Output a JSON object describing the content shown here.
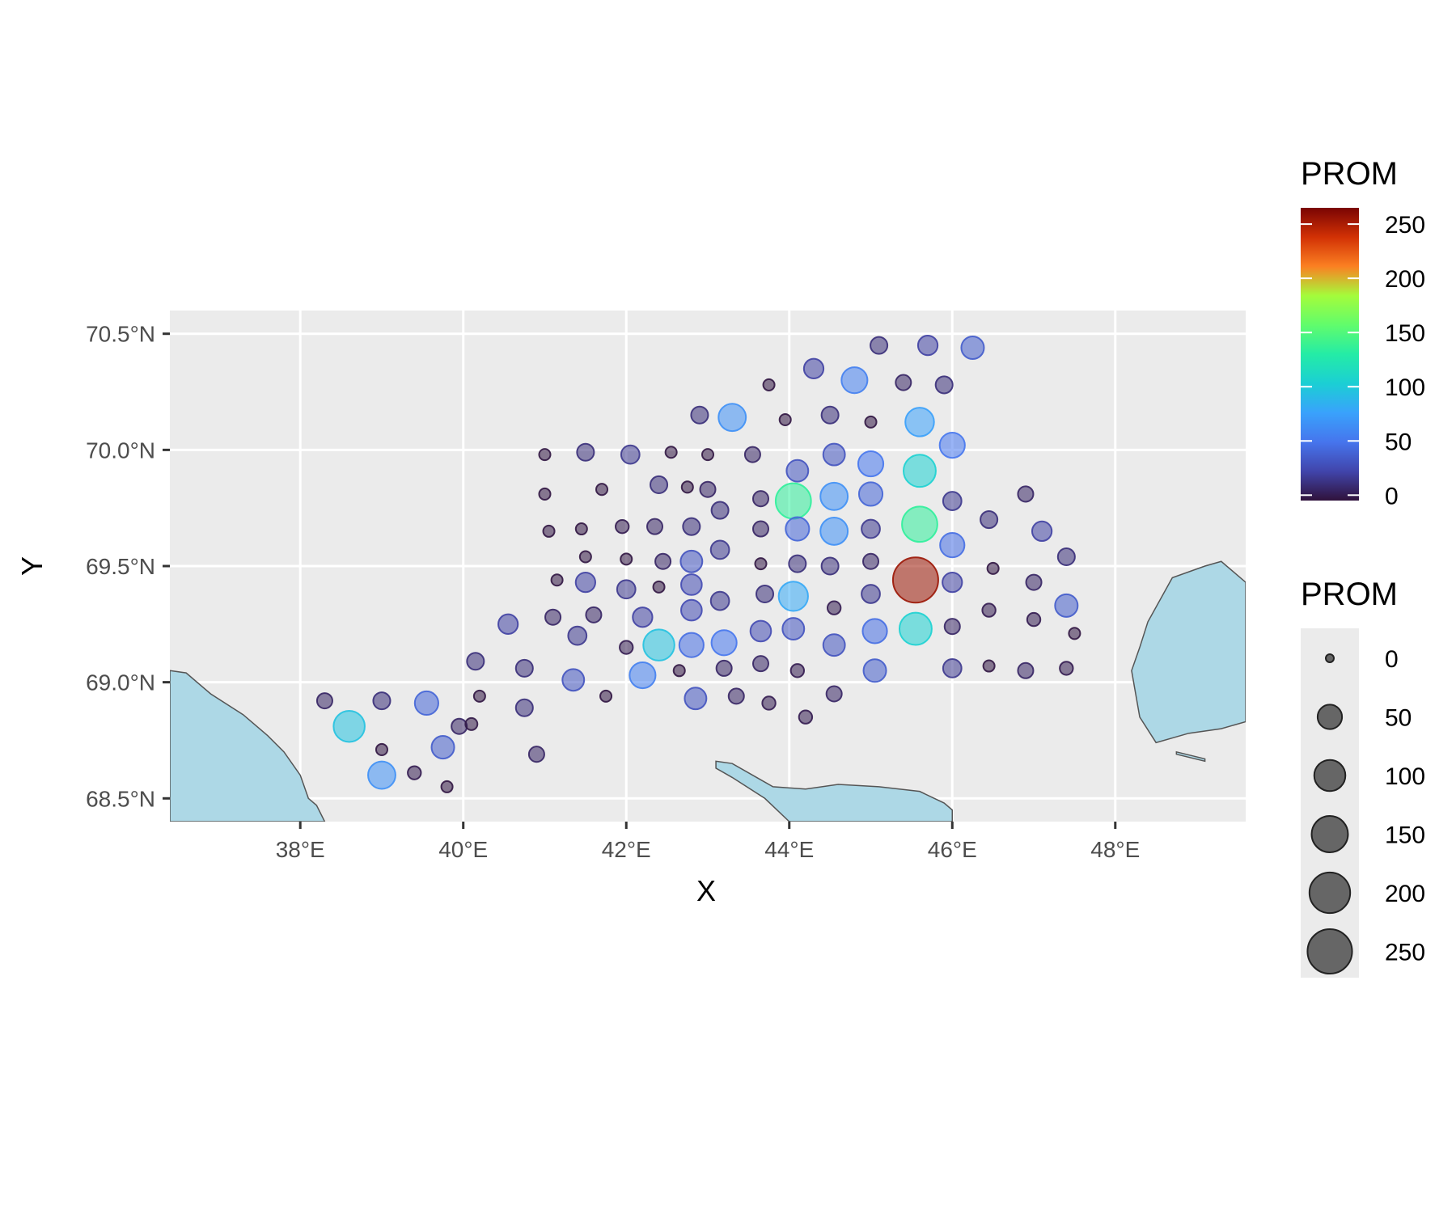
{
  "chart_data": {
    "type": "scatter",
    "subtype": "bubble-map",
    "xlabel": "X",
    "ylabel": "Y",
    "x_ticks": [
      "38°E",
      "40°E",
      "42°E",
      "44°E",
      "46°E",
      "48°E"
    ],
    "x_tick_values": [
      38,
      40,
      42,
      44,
      46,
      48
    ],
    "y_ticks": [
      "70.5°N",
      "70.0°N",
      "69.5°N",
      "69.0°N",
      "68.5°N"
    ],
    "y_tick_values": [
      70.5,
      70.0,
      69.5,
      69.0,
      68.5
    ],
    "xlim": [
      36.4,
      49.6
    ],
    "ylim": [
      68.4,
      70.6
    ],
    "grid": true,
    "legend_position": "right",
    "color_legend": {
      "title": "PROM",
      "ticks": [
        0,
        50,
        100,
        150,
        200,
        250
      ]
    },
    "size_legend": {
      "title": "PROM",
      "values": [
        0,
        50,
        100,
        150,
        200,
        250
      ]
    },
    "colors": {
      "panel": "#ebebeb",
      "grid": "#ffffff",
      "land": "#add8e6",
      "coast": "#555555",
      "size_legend_fill": "#3a3a3a"
    },
    "points": [
      {
        "lon": 38.3,
        "lat": 68.92,
        "prom": 10
      },
      {
        "lon": 38.6,
        "lat": 68.81,
        "prom": 100
      },
      {
        "lon": 39.0,
        "lat": 68.92,
        "prom": 15
      },
      {
        "lon": 39.0,
        "lat": 68.71,
        "prom": 2
      },
      {
        "lon": 39.0,
        "lat": 68.6,
        "prom": 70
      },
      {
        "lon": 39.4,
        "lat": 68.61,
        "prom": 5
      },
      {
        "lon": 39.55,
        "lat": 68.91,
        "prom": 45
      },
      {
        "lon": 39.75,
        "lat": 68.72,
        "prom": 40
      },
      {
        "lon": 39.8,
        "lat": 68.55,
        "prom": 2
      },
      {
        "lon": 39.95,
        "lat": 68.81,
        "prom": 10
      },
      {
        "lon": 40.1,
        "lat": 68.82,
        "prom": 3
      },
      {
        "lon": 40.15,
        "lat": 69.09,
        "prom": 15
      },
      {
        "lon": 40.2,
        "lat": 68.94,
        "prom": 2
      },
      {
        "lon": 40.55,
        "lat": 69.25,
        "prom": 25
      },
      {
        "lon": 40.75,
        "lat": 69.06,
        "prom": 15
      },
      {
        "lon": 40.75,
        "lat": 68.89,
        "prom": 15
      },
      {
        "lon": 40.9,
        "lat": 68.69,
        "prom": 10
      },
      {
        "lon": 41.0,
        "lat": 69.98,
        "prom": 2
      },
      {
        "lon": 41.0,
        "lat": 69.81,
        "prom": 2
      },
      {
        "lon": 41.05,
        "lat": 69.65,
        "prom": 2
      },
      {
        "lon": 41.1,
        "lat": 69.28,
        "prom": 10
      },
      {
        "lon": 41.15,
        "lat": 69.44,
        "prom": 2
      },
      {
        "lon": 41.35,
        "lat": 69.01,
        "prom": 35
      },
      {
        "lon": 41.4,
        "lat": 69.2,
        "prom": 20
      },
      {
        "lon": 41.45,
        "lat": 69.66,
        "prom": 2
      },
      {
        "lon": 41.5,
        "lat": 69.99,
        "prom": 15
      },
      {
        "lon": 41.5,
        "lat": 69.43,
        "prom": 25
      },
      {
        "lon": 41.5,
        "lat": 69.54,
        "prom": 2
      },
      {
        "lon": 41.6,
        "lat": 69.29,
        "prom": 10
      },
      {
        "lon": 41.7,
        "lat": 69.83,
        "prom": 2
      },
      {
        "lon": 41.75,
        "lat": 68.94,
        "prom": 2
      },
      {
        "lon": 41.95,
        "lat": 69.67,
        "prom": 5
      },
      {
        "lon": 42.0,
        "lat": 69.53,
        "prom": 2
      },
      {
        "lon": 42.0,
        "lat": 69.4,
        "prom": 20
      },
      {
        "lon": 42.0,
        "lat": 69.15,
        "prom": 5
      },
      {
        "lon": 42.05,
        "lat": 69.98,
        "prom": 20
      },
      {
        "lon": 42.2,
        "lat": 69.28,
        "prom": 25
      },
      {
        "lon": 42.2,
        "lat": 69.03,
        "prom": 60
      },
      {
        "lon": 42.35,
        "lat": 69.67,
        "prom": 10
      },
      {
        "lon": 42.4,
        "lat": 69.16,
        "prom": 100
      },
      {
        "lon": 42.4,
        "lat": 69.41,
        "prom": 2
      },
      {
        "lon": 42.4,
        "lat": 69.85,
        "prom": 15
      },
      {
        "lon": 42.45,
        "lat": 69.52,
        "prom": 10
      },
      {
        "lon": 42.55,
        "lat": 69.99,
        "prom": 2
      },
      {
        "lon": 42.65,
        "lat": 69.05,
        "prom": 2
      },
      {
        "lon": 42.75,
        "lat": 69.84,
        "prom": 2
      },
      {
        "lon": 42.8,
        "lat": 69.67,
        "prom": 15
      },
      {
        "lon": 42.8,
        "lat": 69.52,
        "prom": 35
      },
      {
        "lon": 42.8,
        "lat": 69.42,
        "prom": 30
      },
      {
        "lon": 42.8,
        "lat": 69.31,
        "prom": 30
      },
      {
        "lon": 42.8,
        "lat": 69.16,
        "prom": 50
      },
      {
        "lon": 42.85,
        "lat": 68.93,
        "prom": 35
      },
      {
        "lon": 42.9,
        "lat": 70.15,
        "prom": 15
      },
      {
        "lon": 43.0,
        "lat": 69.98,
        "prom": 2
      },
      {
        "lon": 43.0,
        "lat": 69.83,
        "prom": 10
      },
      {
        "lon": 43.15,
        "lat": 69.74,
        "prom": 15
      },
      {
        "lon": 43.15,
        "lat": 69.57,
        "prom": 20
      },
      {
        "lon": 43.15,
        "lat": 69.35,
        "prom": 20
      },
      {
        "lon": 43.2,
        "lat": 69.17,
        "prom": 55
      },
      {
        "lon": 43.2,
        "lat": 69.06,
        "prom": 10
      },
      {
        "lon": 43.3,
        "lat": 70.14,
        "prom": 70
      },
      {
        "lon": 43.35,
        "lat": 68.94,
        "prom": 10
      },
      {
        "lon": 43.55,
        "lat": 69.98,
        "prom": 10
      },
      {
        "lon": 43.65,
        "lat": 69.79,
        "prom": 10
      },
      {
        "lon": 43.65,
        "lat": 69.66,
        "prom": 10
      },
      {
        "lon": 43.65,
        "lat": 69.51,
        "prom": 2
      },
      {
        "lon": 43.65,
        "lat": 69.22,
        "prom": 30
      },
      {
        "lon": 43.65,
        "lat": 69.08,
        "prom": 10
      },
      {
        "lon": 43.7,
        "lat": 69.38,
        "prom": 15
      },
      {
        "lon": 43.75,
        "lat": 70.28,
        "prom": 2
      },
      {
        "lon": 43.75,
        "lat": 68.91,
        "prom": 5
      },
      {
        "lon": 43.95,
        "lat": 70.13,
        "prom": 2
      },
      {
        "lon": 44.05,
        "lat": 69.78,
        "prom": 140
      },
      {
        "lon": 44.05,
        "lat": 69.37,
        "prom": 85
      },
      {
        "lon": 44.05,
        "lat": 69.23,
        "prom": 35
      },
      {
        "lon": 44.1,
        "lat": 69.91,
        "prom": 35
      },
      {
        "lon": 44.1,
        "lat": 69.66,
        "prom": 45
      },
      {
        "lon": 44.1,
        "lat": 69.51,
        "prom": 15
      },
      {
        "lon": 44.1,
        "lat": 69.05,
        "prom": 5
      },
      {
        "lon": 44.2,
        "lat": 68.85,
        "prom": 5
      },
      {
        "lon": 44.3,
        "lat": 70.35,
        "prom": 25
      },
      {
        "lon": 44.5,
        "lat": 70.15,
        "prom": 15
      },
      {
        "lon": 44.5,
        "lat": 69.5,
        "prom": 15
      },
      {
        "lon": 44.55,
        "lat": 69.98,
        "prom": 35
      },
      {
        "lon": 44.55,
        "lat": 69.8,
        "prom": 70
      },
      {
        "lon": 44.55,
        "lat": 69.65,
        "prom": 70
      },
      {
        "lon": 44.55,
        "lat": 69.32,
        "prom": 5
      },
      {
        "lon": 44.55,
        "lat": 69.16,
        "prom": 35
      },
      {
        "lon": 44.55,
        "lat": 68.95,
        "prom": 10
      },
      {
        "lon": 44.8,
        "lat": 70.3,
        "prom": 60
      },
      {
        "lon": 45.0,
        "lat": 70.12,
        "prom": 2
      },
      {
        "lon": 45.0,
        "lat": 69.94,
        "prom": 55
      },
      {
        "lon": 45.0,
        "lat": 69.81,
        "prom": 45
      },
      {
        "lon": 45.0,
        "lat": 69.66,
        "prom": 20
      },
      {
        "lon": 45.0,
        "lat": 69.52,
        "prom": 10
      },
      {
        "lon": 45.0,
        "lat": 69.38,
        "prom": 20
      },
      {
        "lon": 45.05,
        "lat": 69.22,
        "prom": 50
      },
      {
        "lon": 45.05,
        "lat": 69.05,
        "prom": 40
      },
      {
        "lon": 45.1,
        "lat": 70.45,
        "prom": 15
      },
      {
        "lon": 45.4,
        "lat": 70.29,
        "prom": 10
      },
      {
        "lon": 45.55,
        "lat": 69.44,
        "prom": 260
      },
      {
        "lon": 45.55,
        "lat": 69.23,
        "prom": 110
      },
      {
        "lon": 45.6,
        "lat": 70.12,
        "prom": 80
      },
      {
        "lon": 45.6,
        "lat": 69.91,
        "prom": 110
      },
      {
        "lon": 45.6,
        "lat": 69.68,
        "prom": 140
      },
      {
        "lon": 45.7,
        "lat": 70.45,
        "prom": 25
      },
      {
        "lon": 45.9,
        "lat": 70.28,
        "prom": 15
      },
      {
        "lon": 46.0,
        "lat": 70.02,
        "prom": 55
      },
      {
        "lon": 46.0,
        "lat": 69.78,
        "prom": 20
      },
      {
        "lon": 46.0,
        "lat": 69.59,
        "prom": 50
      },
      {
        "lon": 46.0,
        "lat": 69.43,
        "prom": 25
      },
      {
        "lon": 46.0,
        "lat": 69.24,
        "prom": 10
      },
      {
        "lon": 46.0,
        "lat": 69.06,
        "prom": 20
      },
      {
        "lon": 46.25,
        "lat": 70.44,
        "prom": 40
      },
      {
        "lon": 46.45,
        "lat": 69.7,
        "prom": 15
      },
      {
        "lon": 46.45,
        "lat": 69.31,
        "prom": 5
      },
      {
        "lon": 46.45,
        "lat": 69.07,
        "prom": 2
      },
      {
        "lon": 46.5,
        "lat": 69.49,
        "prom": 2
      },
      {
        "lon": 46.9,
        "lat": 69.81,
        "prom": 10
      },
      {
        "lon": 46.9,
        "lat": 69.05,
        "prom": 10
      },
      {
        "lon": 47.0,
        "lat": 69.43,
        "prom": 10
      },
      {
        "lon": 47.0,
        "lat": 69.27,
        "prom": 5
      },
      {
        "lon": 47.1,
        "lat": 69.65,
        "prom": 25
      },
      {
        "lon": 47.4,
        "lat": 69.54,
        "prom": 15
      },
      {
        "lon": 47.4,
        "lat": 69.33,
        "prom": 40
      },
      {
        "lon": 47.4,
        "lat": 69.06,
        "prom": 5
      },
      {
        "lon": 47.5,
        "lat": 69.21,
        "prom": 2
      }
    ],
    "land": [
      [
        [
          36.4,
          69.05
        ],
        [
          36.6,
          69.04
        ],
        [
          36.9,
          68.95
        ],
        [
          37.3,
          68.86
        ],
        [
          37.6,
          68.77
        ],
        [
          37.8,
          68.7
        ],
        [
          38.0,
          68.6
        ],
        [
          38.1,
          68.5
        ],
        [
          38.2,
          68.47
        ],
        [
          38.3,
          68.4
        ],
        [
          36.4,
          68.4
        ]
      ],
      [
        [
          43.1,
          68.66
        ],
        [
          43.3,
          68.65
        ],
        [
          43.6,
          68.59
        ],
        [
          43.8,
          68.55
        ],
        [
          44.2,
          68.54
        ],
        [
          44.6,
          68.56
        ],
        [
          45.1,
          68.55
        ],
        [
          45.6,
          68.53
        ],
        [
          45.9,
          68.48
        ],
        [
          46.0,
          68.45
        ],
        [
          46.0,
          68.4
        ],
        [
          44.0,
          68.4
        ],
        [
          43.7,
          68.5
        ],
        [
          43.3,
          68.59
        ],
        [
          43.1,
          68.63
        ]
      ],
      [
        [
          49.6,
          69.43
        ],
        [
          49.3,
          69.52
        ],
        [
          49.1,
          69.5
        ],
        [
          48.7,
          69.45
        ],
        [
          48.4,
          69.26
        ],
        [
          48.3,
          69.15
        ],
        [
          48.2,
          69.05
        ],
        [
          48.3,
          68.85
        ],
        [
          48.5,
          68.74
        ],
        [
          48.9,
          68.78
        ],
        [
          49.3,
          68.8
        ],
        [
          49.6,
          68.83
        ]
      ],
      [
        [
          48.75,
          68.7
        ],
        [
          49.1,
          68.67
        ],
        [
          49.1,
          68.66
        ],
        [
          48.75,
          68.69
        ]
      ]
    ]
  }
}
